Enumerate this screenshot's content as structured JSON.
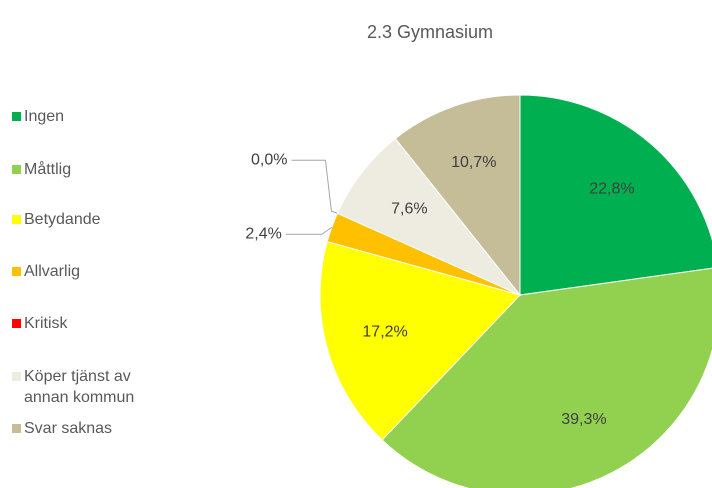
{
  "chart_data": {
    "type": "pie",
    "title": "2.3 Gymnasium",
    "categories": [
      "Ingen",
      "Måttlig",
      "Betydande",
      "Allvarlig",
      "Kritisk",
      "Köper tjänst av annan kommun",
      "Svar saknas"
    ],
    "values": [
      22.8,
      39.3,
      17.2,
      2.4,
      0.0,
      7.6,
      10.7
    ],
    "value_labels": [
      "22,8%",
      "39,3%",
      "17,2%",
      "2,4%",
      "0,0%",
      "7,6%",
      "10,7%"
    ],
    "colors": [
      "#00b050",
      "#92d050",
      "#ffff00",
      "#ffc000",
      "#ff0000",
      "#eeece1",
      "#c4bd97"
    ],
    "legend": "left"
  }
}
